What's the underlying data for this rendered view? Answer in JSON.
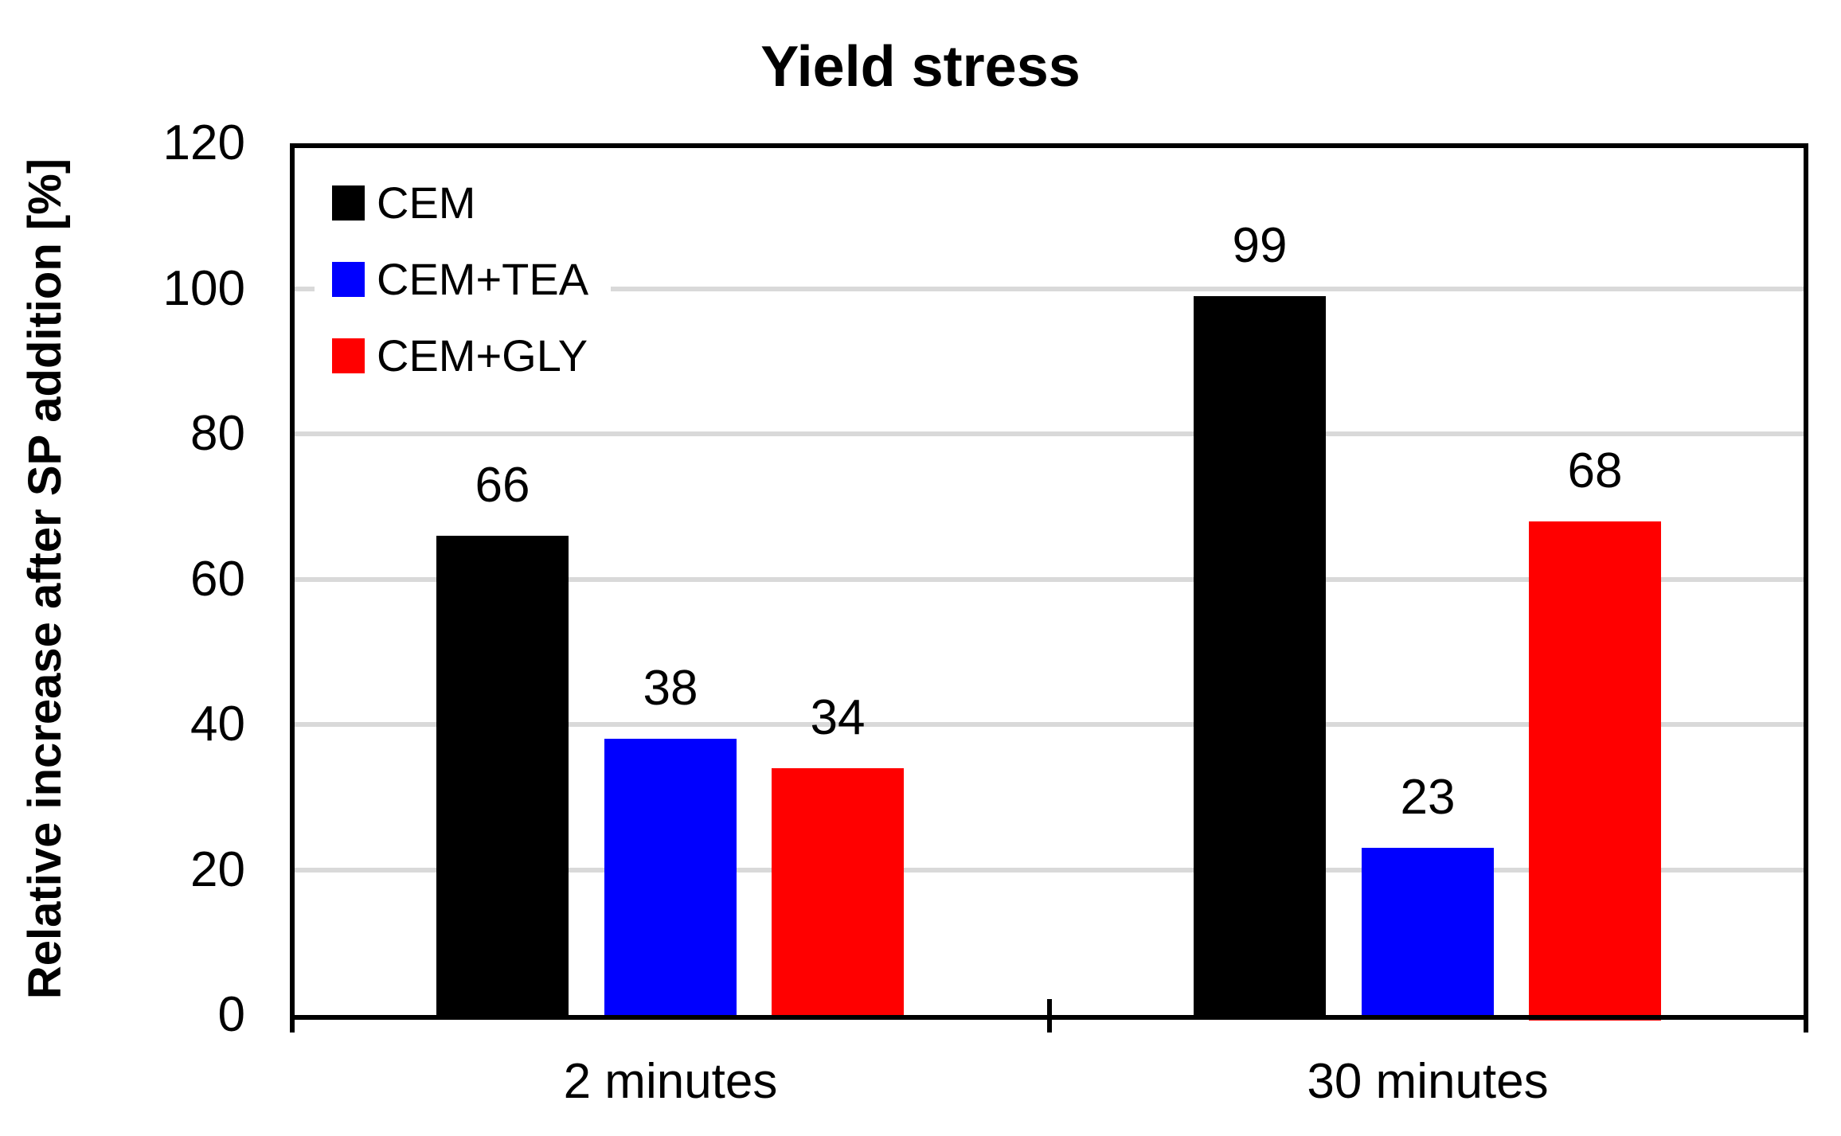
{
  "chart_data": {
    "type": "bar",
    "title": "Yield stress",
    "ylabel": "Relative increase after SP addition [%]",
    "xlabel": "",
    "categories": [
      "2 minutes",
      "30 minutes"
    ],
    "series": [
      {
        "name": "CEM",
        "color": "#000000",
        "values": [
          66,
          99
        ]
      },
      {
        "name": "CEM+TEA",
        "color": "#0000FF",
        "values": [
          38,
          23
        ]
      },
      {
        "name": "CEM+GLY",
        "color": "#FF0000",
        "values": [
          34,
          68
        ]
      }
    ],
    "ylim": [
      0,
      120
    ],
    "yticks": [
      0,
      20,
      40,
      60,
      80,
      100,
      120
    ],
    "grid": true,
    "gridline_color": "#D9D9D9",
    "axis_color": "#000000",
    "background": "#FFFFFF",
    "legend_position": "inside-top-left",
    "data_labels": true
  }
}
